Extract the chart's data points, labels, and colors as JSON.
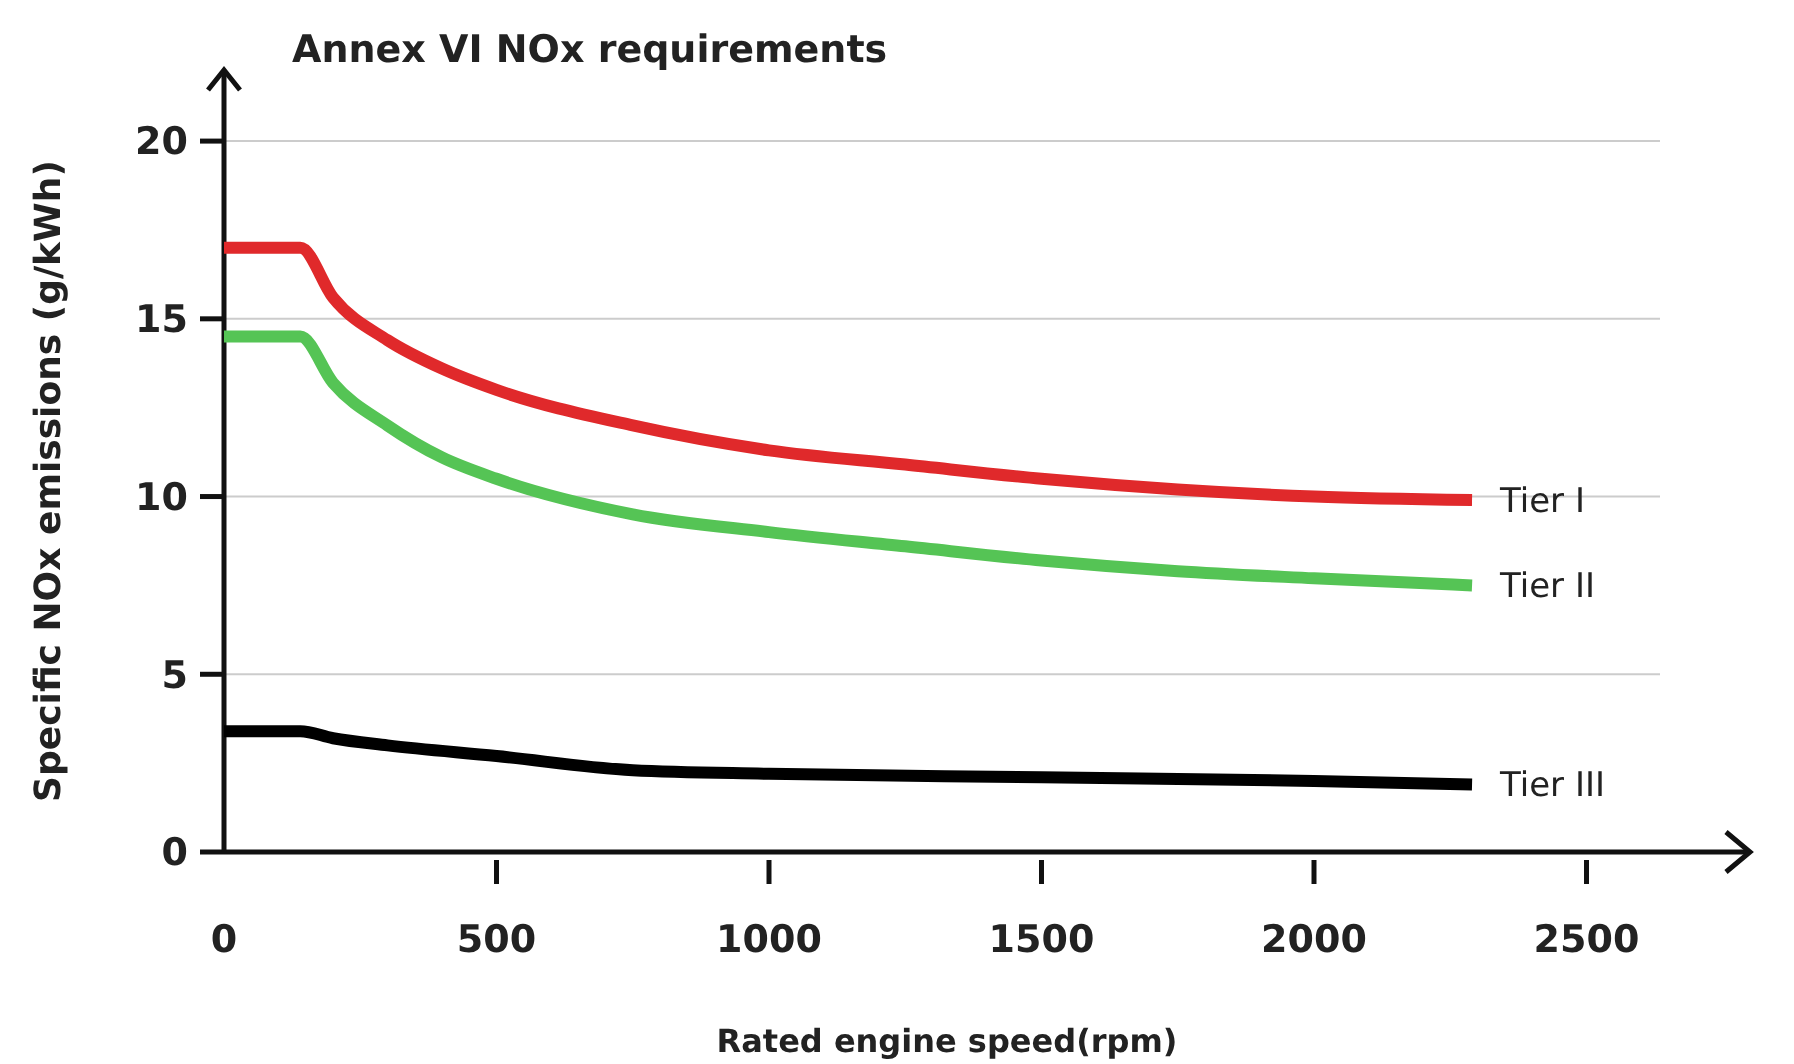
{
  "chart_data": {
    "type": "line",
    "title": "Annex VI NOx requirements",
    "xlabel": "Rated engine speed(rpm)",
    "ylabel": "Specific NOx emissions (g/kWh)",
    "xlim": [
      0,
      2800
    ],
    "ylim": [
      0,
      22
    ],
    "xticks": [
      0,
      500,
      1000,
      1500,
      2000,
      2500
    ],
    "yticks": [
      0,
      5,
      10,
      15,
      20
    ],
    "grid": "y",
    "marker": "none",
    "line_style": "solid",
    "series": [
      {
        "name": "Tier I",
        "color": "#e0292b",
        "x": [
          0,
          140,
          200,
          300,
          400,
          500,
          750,
          1000,
          1250,
          1500,
          1750,
          2000,
          2290
        ],
        "values": [
          17.0,
          17.0,
          15.6,
          14.4,
          13.6,
          13.0,
          12.0,
          11.3,
          10.9,
          10.5,
          10.2,
          10.0,
          9.9
        ]
      },
      {
        "name": "Tier II",
        "color": "#55c455",
        "x": [
          0,
          140,
          200,
          300,
          400,
          500,
          750,
          1000,
          1250,
          1500,
          1750,
          2000,
          2290
        ],
        "values": [
          14.5,
          14.5,
          13.2,
          12.0,
          11.1,
          10.5,
          9.5,
          9.0,
          8.6,
          8.2,
          7.9,
          7.7,
          7.5
        ]
      },
      {
        "name": "Tier III",
        "color": "#000000",
        "x": [
          0,
          140,
          200,
          300,
          500,
          750,
          1000,
          1500,
          2000,
          2290
        ],
        "values": [
          3.4,
          3.4,
          3.2,
          3.0,
          2.7,
          2.3,
          2.2,
          2.1,
          2.0,
          1.9
        ]
      }
    ]
  }
}
